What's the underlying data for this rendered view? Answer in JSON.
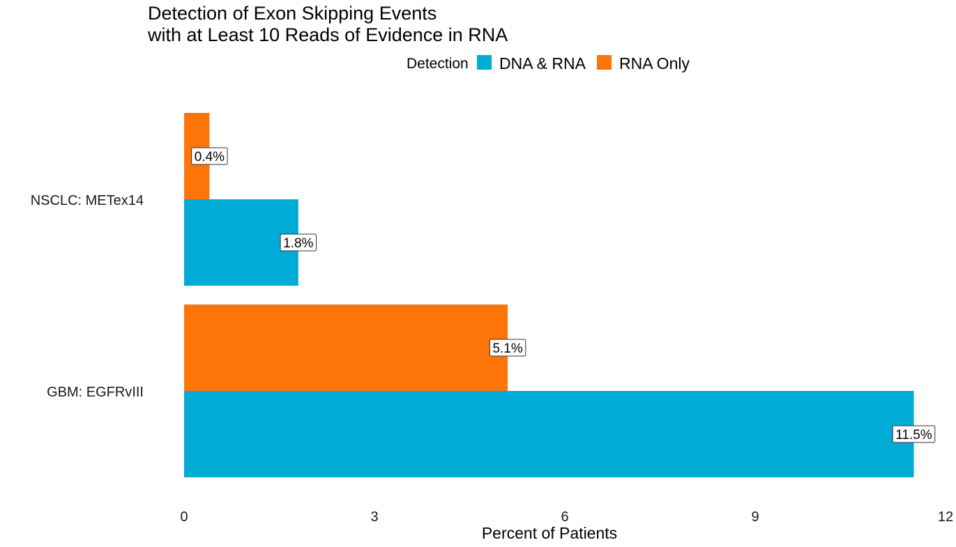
{
  "chart_data": {
    "type": "bar",
    "orientation": "horizontal",
    "title": [
      "Detection of Exon Skipping Events",
      "with at Least 10 Reads of Evidence in RNA"
    ],
    "legend": {
      "title": "Detection",
      "placement": "top",
      "entries": [
        {
          "name": "DNA & RNA",
          "color": "#00ACD6"
        },
        {
          "name": "RNA Only",
          "color": "#FD7508"
        }
      ]
    },
    "categories": [
      "NSCLC: METex14",
      "GBM: EGFRvIII"
    ],
    "series": [
      {
        "name": "RNA Only",
        "color": "#FD7508",
        "values": [
          0.4,
          5.1
        ],
        "labels": [
          "0.4%",
          "5.1%"
        ]
      },
      {
        "name": "DNA & RNA",
        "color": "#00ACD6",
        "values": [
          1.8,
          11.5
        ],
        "labels": [
          "1.8%",
          "11.5%"
        ]
      }
    ],
    "xlabel": "Percent of Patients",
    "ylabel": "",
    "xlim": [
      0,
      12
    ],
    "xticks": [
      0,
      3,
      6,
      9,
      12
    ],
    "xtick_labels": [
      "0",
      "3",
      "6",
      "9",
      "12"
    ],
    "grid": false
  }
}
